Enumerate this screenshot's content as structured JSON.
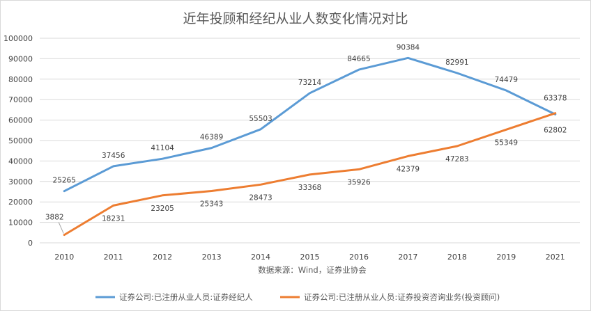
{
  "chart_data": {
    "type": "line",
    "title": "近年投顾和经纪从业人数变化情况对比",
    "source_note": "数据来源：Wind，证券业协会",
    "x": [
      "2010",
      "2011",
      "2012",
      "2013",
      "2014",
      "2015",
      "2016",
      "2017",
      "2018",
      "2019",
      "2021"
    ],
    "ylim": [
      0,
      100000
    ],
    "yticks": [
      "0",
      "10000",
      "20000",
      "30000",
      "40000",
      "50000",
      "60000",
      "70000",
      "80000",
      "90000",
      "100000"
    ],
    "grid": "horizontal",
    "legend_position": "bottom",
    "series": [
      {
        "name": "证券公司:已注册从业人员:证券经纪人",
        "color": "#5b9bd5",
        "values": [
          25265,
          37456,
          41104,
          46389,
          55503,
          73214,
          84665,
          90384,
          82991,
          74479,
          62802
        ],
        "labels": [
          "25265",
          "37456",
          "41104",
          "46389",
          "55503",
          "73214",
          "84665",
          "90384",
          "82991",
          "74479",
          "62802"
        ]
      },
      {
        "name": "证券公司:已注册从业人员:证券投资咨询业务(投资顾问)",
        "color": "#ed7d31",
        "values": [
          3882,
          18231,
          23205,
          25343,
          28473,
          33368,
          35926,
          42379,
          47283,
          55349,
          63378
        ],
        "labels": [
          "3882",
          "18231",
          "23205",
          "25343",
          "28473",
          "33368",
          "35926",
          "42379",
          "47283",
          "55349",
          "63378"
        ]
      }
    ]
  }
}
